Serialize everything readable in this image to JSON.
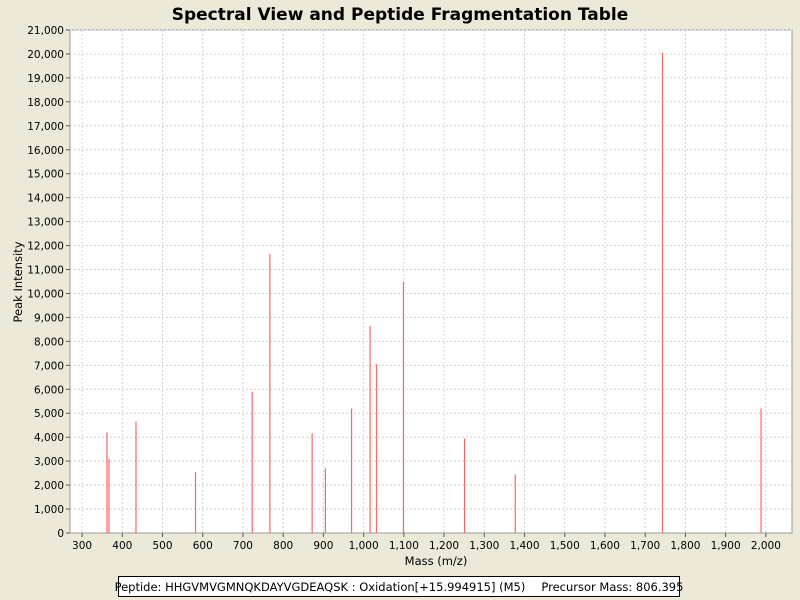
{
  "chart_data": {
    "type": "bar",
    "title": "Spectral View and Peptide Fragmentation Table",
    "xlabel": "Mass (m/z)",
    "ylabel": "Peak Intensity",
    "xlim": [
      270,
      2065
    ],
    "ylim": [
      0,
      21000
    ],
    "x_ticks": [
      300,
      400,
      500,
      600,
      700,
      800,
      900,
      1000,
      1100,
      1200,
      1300,
      1400,
      1500,
      1600,
      1700,
      1800,
      1900,
      2000
    ],
    "x_tick_labels": [
      "300",
      "400",
      "500",
      "600",
      "700",
      "800",
      "900",
      "1,000",
      "1,100",
      "1,200",
      "1,300",
      "1,400",
      "1,500",
      "1,600",
      "1,700",
      "1,800",
      "1,900",
      "2,000"
    ],
    "y_ticks": [
      0,
      1000,
      2000,
      3000,
      4000,
      5000,
      6000,
      7000,
      8000,
      9000,
      10000,
      11000,
      12000,
      13000,
      14000,
      15000,
      16000,
      17000,
      18000,
      19000,
      20000,
      21000
    ],
    "y_tick_labels": [
      "0",
      "1,000",
      "2,000",
      "3,000",
      "4,000",
      "5,000",
      "6,000",
      "7,000",
      "8,000",
      "9,000",
      "10,000",
      "11,000",
      "12,000",
      "13,000",
      "14,000",
      "15,000",
      "16,000",
      "17,000",
      "18,000",
      "19,000",
      "20,000",
      "21,000"
    ],
    "grid": true,
    "bar_color": "#ff6666",
    "peaks": [
      {
        "x": 362,
        "y": 4200
      },
      {
        "x": 367,
        "y": 3100
      },
      {
        "x": 434,
        "y": 4650
      },
      {
        "x": 582,
        "y": 2550
      },
      {
        "x": 723,
        "y": 5900
      },
      {
        "x": 767,
        "y": 11650
      },
      {
        "x": 872,
        "y": 4150
      },
      {
        "x": 905,
        "y": 2700
      },
      {
        "x": 970,
        "y": 5200
      },
      {
        "x": 1016,
        "y": 8650
      },
      {
        "x": 1032,
        "y": 7050
      },
      {
        "x": 1099,
        "y": 10500
      },
      {
        "x": 1251,
        "y": 3950
      },
      {
        "x": 1377,
        "y": 2450
      },
      {
        "x": 1743,
        "y": 20050
      },
      {
        "x": 1988,
        "y": 5200
      }
    ]
  },
  "legend": {
    "peptide": "Peptide: HHGVMVGMNQKDAYVGDEAQSK : Oxidation[+15.994915] (M5)",
    "precursor": "Precursor Mass: 806.395"
  }
}
